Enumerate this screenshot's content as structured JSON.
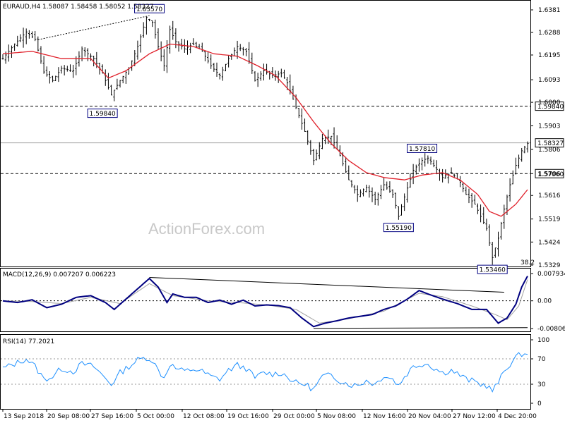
{
  "main_title": "EURAUD,H4  1.58087  1.58458  1.58052  1.58327",
  "watermark": "ActionForex.com",
  "fib_label": "38.2",
  "colors": {
    "bars": "#000000",
    "ma": "#e0202a",
    "macd_line": "#000080",
    "macd_signal": "#a0a0a0",
    "rsi": "#1e90ff",
    "current_line": "#a0a0a0",
    "ref_line": "#000000"
  },
  "current_price_label": "1.58327",
  "ref_levels": [
    {
      "label": "1.59840"
    },
    {
      "label": "1.57060"
    }
  ],
  "price_annotations": [
    {
      "label": "1.63570"
    },
    {
      "label": "1.59840"
    },
    {
      "label": "1.57810"
    },
    {
      "label": "1.55190"
    },
    {
      "label": "1.53460"
    }
  ],
  "x_labels": [
    "13 Sep 2018",
    "20 Sep 08:00",
    "27 Sep 16:00",
    "5 Oct 00:00",
    "12 Oct 08:00",
    "19 Oct 16:00",
    "29 Oct 00:00",
    "5 Nov 08:00",
    "12 Nov 16:00",
    "20 Nov 04:00",
    "27 Nov 12:00",
    "4 Dec 20:00"
  ],
  "macd_title": "MACD(12,26,9) 0.007207 0.006223",
  "macd_labels": [
    "0.007934",
    "0.00",
    "-0.008063"
  ],
  "rsi_title": "RSI(14) 77.2021",
  "rsi_labels": [
    "100",
    "70",
    "30",
    "0"
  ],
  "chart_data": [
    {
      "type": "ohlc",
      "title": "EURAUD,H4  1.58087  1.58458  1.58052  1.58327",
      "y_ticks": [
        1.6381,
        1.6288,
        1.6195,
        1.6093,
        1.6,
        1.5903,
        1.5806,
        1.5706,
        1.5616,
        1.5519,
        1.5424,
        1.5329
      ],
      "ylim": [
        1.5329,
        1.6381
      ],
      "x_tick_labels": [
        "13 Sep 2018",
        "20 Sep 08:00",
        "27 Sep 16:00",
        "5 Oct 00:00",
        "12 Oct 08:00",
        "19 Oct 16:00",
        "29 Oct 00:00",
        "5 Nov 08:00",
        "12 Nov 16:00",
        "20 Nov 04:00",
        "27 Nov 12:00",
        "4 Dec 20:00"
      ],
      "close_path": [
        [
          0,
          1.618
        ],
        [
          4,
          1.624
        ],
        [
          8,
          1.629
        ],
        [
          11,
          1.626
        ],
        [
          14,
          1.6125
        ],
        [
          17,
          1.609
        ],
        [
          20,
          1.614
        ],
        [
          24,
          1.613
        ],
        [
          27,
          1.622
        ],
        [
          31,
          1.618
        ],
        [
          34,
          1.612
        ],
        [
          37,
          1.603
        ],
        [
          40,
          1.609
        ],
        [
          43,
          1.614
        ],
        [
          46,
          1.623
        ],
        [
          49,
          1.635
        ],
        [
          51,
          1.633
        ],
        [
          53,
          1.623
        ],
        [
          55,
          1.615
        ],
        [
          57,
          1.63
        ],
        [
          59,
          1.625
        ],
        [
          62,
          1.622
        ],
        [
          65,
          1.624
        ],
        [
          68,
          1.621
        ],
        [
          71,
          1.615
        ],
        [
          74,
          1.611
        ],
        [
          77,
          1.618
        ],
        [
          80,
          1.623
        ],
        [
          83,
          1.621
        ],
        [
          86,
          1.609
        ],
        [
          89,
          1.613
        ],
        [
          92,
          1.611
        ],
        [
          95,
          1.612
        ],
        [
          97,
          1.608
        ],
        [
          100,
          1.598
        ],
        [
          103,
          1.588
        ],
        [
          106,
          1.576
        ],
        [
          109,
          1.585
        ],
        [
          112,
          1.586
        ],
        [
          115,
          1.578
        ],
        [
          118,
          1.568
        ],
        [
          121,
          1.562
        ],
        [
          124,
          1.565
        ],
        [
          127,
          1.56
        ],
        [
          130,
          1.566
        ],
        [
          133,
          1.562
        ],
        [
          135,
          1.553
        ],
        [
          137,
          1.561
        ],
        [
          140,
          1.572
        ],
        [
          143,
          1.576
        ],
        [
          145,
          1.577
        ],
        [
          147,
          1.574
        ],
        [
          150,
          1.569
        ],
        [
          153,
          1.571
        ],
        [
          156,
          1.567
        ],
        [
          158,
          1.562
        ],
        [
          161,
          1.558
        ],
        [
          163,
          1.553
        ],
        [
          165,
          1.548
        ],
        [
          167,
          1.536
        ],
        [
          169,
          1.544
        ],
        [
          171,
          1.556
        ],
        [
          173,
          1.566
        ],
        [
          175,
          1.574
        ],
        [
          177,
          1.58
        ],
        [
          179,
          1.583
        ]
      ],
      "moving_average": [
        [
          0,
          1.62
        ],
        [
          10,
          1.621
        ],
        [
          20,
          1.618
        ],
        [
          30,
          1.618
        ],
        [
          36,
          1.61
        ],
        [
          42,
          1.613
        ],
        [
          50,
          1.62
        ],
        [
          57,
          1.624
        ],
        [
          65,
          1.623
        ],
        [
          72,
          1.62
        ],
        [
          80,
          1.619
        ],
        [
          87,
          1.615
        ],
        [
          93,
          1.611
        ],
        [
          100,
          1.602
        ],
        [
          106,
          1.592
        ],
        [
          112,
          1.583
        ],
        [
          118,
          1.576
        ],
        [
          124,
          1.571
        ],
        [
          130,
          1.569
        ],
        [
          137,
          1.568
        ],
        [
          143,
          1.57
        ],
        [
          150,
          1.571
        ],
        [
          156,
          1.568
        ],
        [
          162,
          1.562
        ],
        [
          166,
          1.555
        ],
        [
          170,
          1.553
        ],
        [
          175,
          1.558
        ],
        [
          179,
          1.564
        ]
      ],
      "reference_lines": [
        1.5984,
        1.5706
      ],
      "current_price": 1.58327,
      "trend_line": [
        [
          12,
          1.6258
        ],
        [
          50,
          1.6357
        ]
      ],
      "series": [
        {
          "name": "EURAUD,H4",
          "type": "ohlc"
        }
      ]
    },
    {
      "type": "line",
      "title": "MACD(12,26,9) 0.007207 0.006223",
      "ylim": [
        -0.008063,
        0.007934
      ],
      "y_ticks": [
        0.007934,
        0.0,
        -0.008063
      ],
      "macd_path": [
        [
          0,
          0.0
        ],
        [
          5,
          -0.0005
        ],
        [
          10,
          0.0003
        ],
        [
          15,
          -0.002
        ],
        [
          20,
          -0.001
        ],
        [
          25,
          0.001
        ],
        [
          30,
          0.0015
        ],
        [
          35,
          -0.0005
        ],
        [
          38,
          -0.0025
        ],
        [
          42,
          0.0005
        ],
        [
          46,
          0.0035
        ],
        [
          50,
          0.0065
        ],
        [
          53,
          0.004
        ],
        [
          56,
          -0.0005
        ],
        [
          58,
          0.002
        ],
        [
          62,
          0.001
        ],
        [
          66,
          0.001
        ],
        [
          70,
          -0.0005
        ],
        [
          74,
          0.0002
        ],
        [
          78,
          -0.001
        ],
        [
          82,
          0.0002
        ],
        [
          86,
          -0.0015
        ],
        [
          90,
          -0.0012
        ],
        [
          94,
          -0.0014
        ],
        [
          98,
          -0.002
        ],
        [
          102,
          -0.005
        ],
        [
          106,
          -0.0075
        ],
        [
          110,
          -0.0065
        ],
        [
          114,
          -0.0058
        ],
        [
          118,
          -0.005
        ],
        [
          122,
          -0.0045
        ],
        [
          126,
          -0.004
        ],
        [
          130,
          -0.0025
        ],
        [
          134,
          -0.0015
        ],
        [
          138,
          0.0005
        ],
        [
          142,
          0.003
        ],
        [
          145,
          0.002
        ],
        [
          150,
          0.0005
        ],
        [
          155,
          -0.0008
        ],
        [
          160,
          -0.0025
        ],
        [
          165,
          -0.0025
        ],
        [
          169,
          -0.0065
        ],
        [
          172,
          -0.005
        ],
        [
          175,
          -0.001
        ],
        [
          177,
          0.004
        ],
        [
          179,
          0.0072
        ]
      ],
      "signal_path": [
        [
          0,
          0.0
        ],
        [
          10,
          -0.0002
        ],
        [
          20,
          -0.0008
        ],
        [
          30,
          0.001
        ],
        [
          40,
          -0.0008
        ],
        [
          50,
          0.005
        ],
        [
          58,
          0.0015
        ],
        [
          70,
          0.0
        ],
        [
          80,
          -0.0005
        ],
        [
          90,
          -0.0012
        ],
        [
          100,
          -0.0025
        ],
        [
          108,
          -0.0065
        ],
        [
          118,
          -0.0052
        ],
        [
          130,
          -0.003
        ],
        [
          142,
          0.0022
        ],
        [
          150,
          0.0012
        ],
        [
          160,
          -0.0015
        ],
        [
          168,
          -0.004
        ],
        [
          172,
          -0.0055
        ],
        [
          176,
          -0.0015
        ],
        [
          179,
          0.0062
        ]
      ],
      "trend_lines": [
        [
          [
            50,
            0.0068
          ],
          [
            171,
            0.0025
          ]
        ],
        [
          [
            106,
            -0.008
          ],
          [
            179,
            -0.0078
          ]
        ]
      ],
      "series": [
        {
          "name": "MACD(12,26,9)"
        }
      ]
    },
    {
      "type": "line",
      "title": "RSI(14) 77.2021",
      "ylim": [
        0,
        100
      ],
      "y_ticks": [
        100,
        70,
        30,
        0
      ],
      "levels": [
        70,
        30
      ],
      "rsi_path": [
        [
          0,
          55
        ],
        [
          4,
          62
        ],
        [
          8,
          70
        ],
        [
          11,
          58
        ],
        [
          14,
          38
        ],
        [
          17,
          42
        ],
        [
          20,
          55
        ],
        [
          24,
          50
        ],
        [
          27,
          62
        ],
        [
          31,
          58
        ],
        [
          34,
          44
        ],
        [
          37,
          30
        ],
        [
          40,
          48
        ],
        [
          43,
          58
        ],
        [
          46,
          68
        ],
        [
          49,
          72
        ],
        [
          51,
          68
        ],
        [
          53,
          52
        ],
        [
          55,
          40
        ],
        [
          57,
          62
        ],
        [
          59,
          55
        ],
        [
          62,
          50
        ],
        [
          65,
          54
        ],
        [
          68,
          50
        ],
        [
          71,
          42
        ],
        [
          74,
          38
        ],
        [
          77,
          52
        ],
        [
          80,
          60
        ],
        [
          83,
          55
        ],
        [
          86,
          40
        ],
        [
          89,
          48
        ],
        [
          92,
          46
        ],
        [
          95,
          48
        ],
        [
          97,
          42
        ],
        [
          100,
          32
        ],
        [
          103,
          30
        ],
        [
          106,
          22
        ],
        [
          109,
          42
        ],
        [
          112,
          44
        ],
        [
          115,
          36
        ],
        [
          118,
          30
        ],
        [
          121,
          28
        ],
        [
          124,
          36
        ],
        [
          127,
          30
        ],
        [
          130,
          44
        ],
        [
          133,
          38
        ],
        [
          135,
          28
        ],
        [
          137,
          42
        ],
        [
          140,
          58
        ],
        [
          143,
          62
        ],
        [
          145,
          62
        ],
        [
          147,
          56
        ],
        [
          150,
          48
        ],
        [
          153,
          52
        ],
        [
          156,
          44
        ],
        [
          158,
          38
        ],
        [
          161,
          34
        ],
        [
          163,
          30
        ],
        [
          165,
          28
        ],
        [
          167,
          20
        ],
        [
          169,
          32
        ],
        [
          171,
          50
        ],
        [
          173,
          62
        ],
        [
          175,
          72
        ],
        [
          177,
          78
        ],
        [
          179,
          77
        ]
      ],
      "series": [
        {
          "name": "RSI(14)"
        }
      ]
    }
  ]
}
